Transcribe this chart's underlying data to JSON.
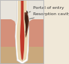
{
  "bg_color": "#f0e8d8",
  "tooth_white_color": "#ffffff",
  "dentin_color": "#e8d5b0",
  "pulp_color": "#c0392b",
  "lesion_color": "#6b3a2a",
  "lesion_dark_color": "#3d1f12",
  "gum_color": "#d4907a",
  "bone_color": "#c9a87c",
  "top_bg_color": "#e8e4dc",
  "label1": "Portal of entry",
  "label2": "Resorption cavity",
  "label_color": "#333333",
  "label_fontsize": 4.5,
  "figsize": [
    1.0,
    0.93
  ],
  "dpi": 100
}
